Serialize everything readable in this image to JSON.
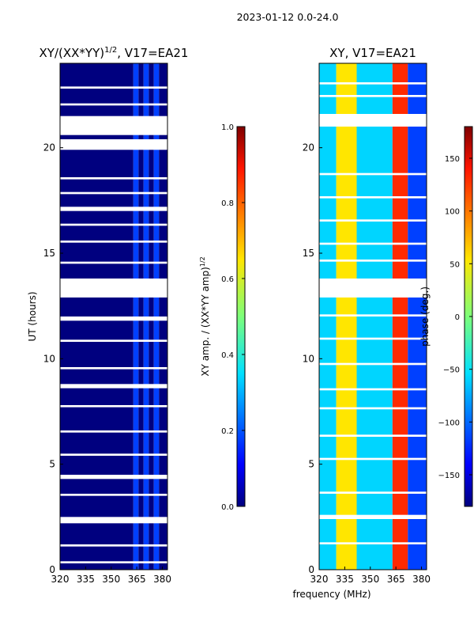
{
  "figure": {
    "suptitle": "2023-01-12 0.0-24.0",
    "xlabel_shared": "frequency (MHz)"
  },
  "chart_data": [
    {
      "type": "heatmap",
      "title_prefix": "XY/(XX*YY)",
      "title_superscript": "1/2",
      "title_suffix": ", V17=EA21",
      "ylabel": "UT (hours)",
      "xlim": [
        320,
        383
      ],
      "ylim": [
        0,
        24
      ],
      "xticks": [
        320,
        335,
        350,
        365,
        380
      ],
      "yticks": [
        0,
        5,
        10,
        15,
        20
      ],
      "bands": [
        {
          "f0": 320,
          "f1": 363,
          "level": "low"
        },
        {
          "f0": 363,
          "f1": 366,
          "level": "mid"
        },
        {
          "f0": 366,
          "f1": 369,
          "level": "low"
        },
        {
          "f0": 369,
          "f1": 372,
          "level": "mid"
        },
        {
          "f0": 372,
          "f1": 375,
          "level": "low"
        },
        {
          "f0": 375,
          "f1": 378,
          "level": "mid"
        },
        {
          "f0": 378,
          "f1": 383,
          "level": "low"
        }
      ],
      "gaps_ut": [
        [
          0.3,
          0.4
        ],
        [
          1.1,
          1.2
        ],
        [
          2.2,
          2.5
        ],
        [
          3.5,
          3.6
        ],
        [
          4.3,
          4.5
        ],
        [
          5.4,
          5.5
        ],
        [
          6.5,
          6.6
        ],
        [
          7.7,
          7.8
        ],
        [
          8.6,
          8.8
        ],
        [
          9.5,
          9.6
        ],
        [
          10.8,
          10.9
        ],
        [
          11.8,
          12.0
        ],
        [
          12.9,
          13.8
        ],
        [
          14.5,
          14.6
        ],
        [
          15.5,
          15.6
        ],
        [
          16.3,
          16.4
        ],
        [
          17.0,
          17.2
        ],
        [
          17.8,
          17.9
        ],
        [
          18.5,
          18.6
        ],
        [
          19.9,
          20.4
        ],
        [
          20.6,
          21.5
        ],
        [
          22.0,
          22.1
        ],
        [
          22.8,
          22.9
        ]
      ],
      "colorbar": {
        "label_prefix": "XY amp. / (XX*YY amp)",
        "label_superscript": "1/2",
        "range": [
          0.0,
          1.0
        ],
        "ticks": [
          "0.0",
          "0.2",
          "0.4",
          "0.6",
          "0.8",
          "1.0"
        ]
      }
    },
    {
      "type": "heatmap",
      "title": "XY, V17=EA21",
      "xlim": [
        320,
        383
      ],
      "ylim": [
        0,
        24
      ],
      "xticks": [
        320,
        335,
        350,
        365,
        380
      ],
      "yticks": [
        0,
        5,
        10,
        15,
        20
      ],
      "bands": [
        {
          "f0": 320,
          "f1": 330,
          "level": "mix"
        },
        {
          "f0": 330,
          "f1": 342,
          "level": "hot"
        },
        {
          "f0": 342,
          "f1": 363,
          "level": "cyan"
        },
        {
          "f0": 363,
          "f1": 372,
          "level": "red"
        },
        {
          "f0": 372,
          "f1": 383,
          "level": "blue"
        }
      ],
      "gaps_ut": [
        [
          1.2,
          1.3
        ],
        [
          2.4,
          2.6
        ],
        [
          3.6,
          3.7
        ],
        [
          5.2,
          5.3
        ],
        [
          6.3,
          6.4
        ],
        [
          7.6,
          7.7
        ],
        [
          8.5,
          8.6
        ],
        [
          9.7,
          9.8
        ],
        [
          10.9,
          11.0
        ],
        [
          12.0,
          12.1
        ],
        [
          12.9,
          13.8
        ],
        [
          14.6,
          14.7
        ],
        [
          15.4,
          15.5
        ],
        [
          16.5,
          16.6
        ],
        [
          17.6,
          17.7
        ],
        [
          18.7,
          18.8
        ],
        [
          21.0,
          21.6
        ],
        [
          22.4,
          22.5
        ],
        [
          23.0,
          23.1
        ]
      ],
      "colorbar": {
        "label": "phase (deg.)",
        "range": [
          -180,
          180
        ],
        "ticks": [
          "−150",
          "−100",
          "−50",
          "0",
          "50",
          "100",
          "150"
        ]
      }
    }
  ],
  "colors": {
    "jet_low": "#00007f",
    "jet_blue": "#0040ff",
    "jet_cyan": "#00d5ff",
    "jet_green": "#7dff7a",
    "jet_yellow": "#ffe600",
    "jet_red": "#ff2a00",
    "jet_high": "#7f0000"
  }
}
